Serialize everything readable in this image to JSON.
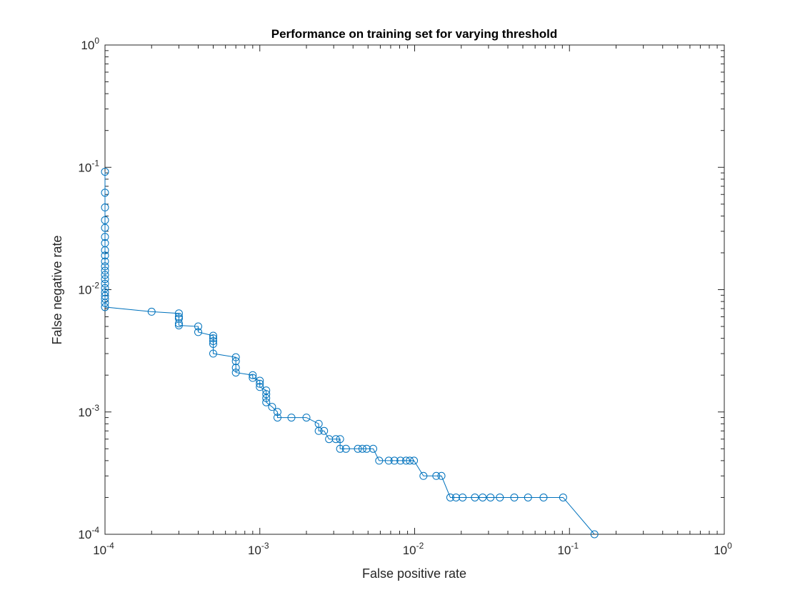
{
  "chart_data": {
    "type": "line",
    "title": "Performance on training set for varying threshold",
    "xlabel": "False positive rate",
    "ylabel": "False negative rate",
    "xscale": "log",
    "yscale": "log",
    "xlim": [
      0.0001,
      1
    ],
    "ylim": [
      0.0001,
      1
    ],
    "grid": false,
    "legend": "none",
    "color": "#0072BD",
    "x_ticks": [
      {
        "value": 0.0001,
        "base": "10",
        "exp": "-4"
      },
      {
        "value": 0.001,
        "base": "10",
        "exp": "-3"
      },
      {
        "value": 0.01,
        "base": "10",
        "exp": "-2"
      },
      {
        "value": 0.1,
        "base": "10",
        "exp": "-1"
      },
      {
        "value": 1,
        "base": "10",
        "exp": "0"
      }
    ],
    "y_ticks": [
      {
        "value": 0.0001,
        "base": "10",
        "exp": "-4"
      },
      {
        "value": 0.001,
        "base": "10",
        "exp": "-3"
      },
      {
        "value": 0.01,
        "base": "10",
        "exp": "-2"
      },
      {
        "value": 0.1,
        "base": "10",
        "exp": "-1"
      },
      {
        "value": 1,
        "base": "10",
        "exp": "0"
      }
    ],
    "series": [
      {
        "points": [
          [
            0.0001,
            0.092
          ],
          [
            0.0001,
            0.062
          ],
          [
            0.0001,
            0.047
          ],
          [
            0.0001,
            0.037
          ],
          [
            0.0001,
            0.032
          ],
          [
            0.0001,
            0.027
          ],
          [
            0.0001,
            0.024
          ],
          [
            0.0001,
            0.021
          ],
          [
            0.0001,
            0.019
          ],
          [
            0.0001,
            0.017
          ],
          [
            0.0001,
            0.0155
          ],
          [
            0.0001,
            0.0143
          ],
          [
            0.0001,
            0.0132
          ],
          [
            0.0001,
            0.0122
          ],
          [
            0.0001,
            0.0112
          ],
          [
            0.0001,
            0.0103
          ],
          [
            0.0001,
            0.0095
          ],
          [
            0.0001,
            0.0089
          ],
          [
            0.0001,
            0.0084
          ],
          [
            0.0001,
            0.0078
          ],
          [
            0.0001,
            0.0072
          ],
          [
            0.0002,
            0.0066
          ],
          [
            0.0003,
            0.0064
          ],
          [
            0.0003,
            0.006
          ],
          [
            0.0003,
            0.0058
          ],
          [
            0.0003,
            0.0053
          ],
          [
            0.0003,
            0.0051
          ],
          [
            0.0004,
            0.005
          ],
          [
            0.0004,
            0.0045
          ],
          [
            0.0005,
            0.0042
          ],
          [
            0.0005,
            0.004
          ],
          [
            0.0005,
            0.0038
          ],
          [
            0.0005,
            0.0036
          ],
          [
            0.0005,
            0.003
          ],
          [
            0.0007,
            0.0028
          ],
          [
            0.0007,
            0.0026
          ],
          [
            0.0007,
            0.0023
          ],
          [
            0.0007,
            0.0021
          ],
          [
            0.0009,
            0.002
          ],
          [
            0.0009,
            0.0019
          ],
          [
            0.001,
            0.0018
          ],
          [
            0.001,
            0.0017
          ],
          [
            0.001,
            0.0016
          ],
          [
            0.0011,
            0.0015
          ],
          [
            0.0011,
            0.0014
          ],
          [
            0.0011,
            0.0013
          ],
          [
            0.0011,
            0.0012
          ],
          [
            0.0012,
            0.0011
          ],
          [
            0.0013,
            0.001
          ],
          [
            0.0013,
            0.0009
          ],
          [
            0.0016,
            0.0009
          ],
          [
            0.002,
            0.0009
          ],
          [
            0.0024,
            0.0008
          ],
          [
            0.0024,
            0.0007
          ],
          [
            0.0026,
            0.0007
          ],
          [
            0.0028,
            0.0006
          ],
          [
            0.0031,
            0.0006
          ],
          [
            0.0033,
            0.0006
          ],
          [
            0.0033,
            0.0005
          ],
          [
            0.0036,
            0.0005
          ],
          [
            0.0043,
            0.0005
          ],
          [
            0.0046,
            0.0005
          ],
          [
            0.0049,
            0.0005
          ],
          [
            0.0054,
            0.0005
          ],
          [
            0.0059,
            0.0004
          ],
          [
            0.0068,
            0.0004
          ],
          [
            0.0074,
            0.0004
          ],
          [
            0.0081,
            0.0004
          ],
          [
            0.0088,
            0.0004
          ],
          [
            0.0093,
            0.0004
          ],
          [
            0.0099,
            0.0004
          ],
          [
            0.0114,
            0.0003
          ],
          [
            0.0138,
            0.0003
          ],
          [
            0.0149,
            0.0003
          ],
          [
            0.017,
            0.0002
          ],
          [
            0.0185,
            0.0002
          ],
          [
            0.0204,
            0.0002
          ],
          [
            0.0245,
            0.0002
          ],
          [
            0.0275,
            0.0002
          ],
          [
            0.0309,
            0.0002
          ],
          [
            0.0355,
            0.0002
          ],
          [
            0.044,
            0.0002
          ],
          [
            0.054,
            0.0002
          ],
          [
            0.068,
            0.0002
          ],
          [
            0.091,
            0.0002
          ],
          [
            0.145,
            0.0001
          ]
        ]
      }
    ]
  }
}
